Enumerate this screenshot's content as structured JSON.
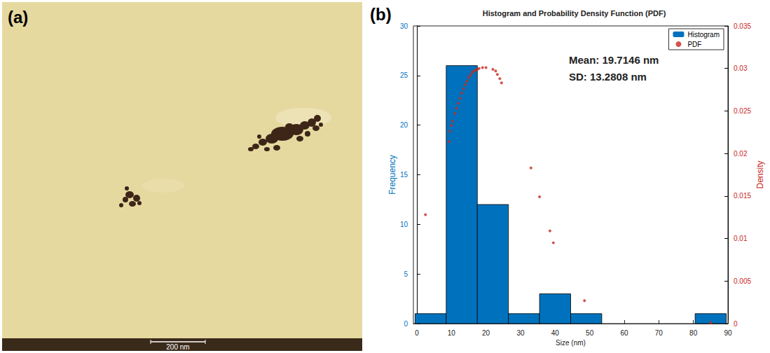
{
  "panel_a": {
    "label": "(a)",
    "scale_bar": "200 nm"
  },
  "chart_data": {
    "type": "histogram",
    "panel_label": "(b)",
    "title": "Histogram and Probability Density Function (PDF)",
    "xlabel": "Size (nm)",
    "ylabel": "Frequency",
    "y2label": "Density",
    "annotations": [
      "Mean: 19.7146 nm",
      "SD: 13.2808 nm"
    ],
    "bins": [
      -0.5,
      8.5,
      17.5,
      26.5,
      35.5,
      44.5,
      53.5,
      62.5,
      71.5,
      80.5,
      89.5
    ],
    "series": [
      {
        "name": "Histogram",
        "type": "bar",
        "color": "#0072bd",
        "values": [
          1,
          26,
          12,
          1,
          3,
          1,
          0,
          0,
          0,
          1
        ]
      },
      {
        "name": "PDF",
        "type": "scatter",
        "axis": "y2",
        "color": "#c8281e",
        "marker": "circle",
        "x": [
          2.5,
          9.3,
          9.6,
          10.0,
          10.3,
          11.0,
          11.5,
          12.0,
          12.5,
          13.0,
          13.5,
          14.0,
          14.5,
          15.0,
          15.5,
          16.0,
          16.5,
          17.0,
          17.5,
          18.0,
          19.0,
          20.0,
          22.0,
          22.8,
          23.3,
          24.0,
          24.5,
          33.0,
          35.5,
          38.5,
          39.5,
          48.5,
          85.0
        ],
        "values": [
          0.0128,
          0.0214,
          0.0226,
          0.0233,
          0.0238,
          0.0247,
          0.0253,
          0.0259,
          0.0265,
          0.0271,
          0.0276,
          0.0281,
          0.0285,
          0.0289,
          0.0292,
          0.0295,
          0.0297,
          0.0298,
          0.0299,
          0.03,
          0.0301,
          0.0301,
          0.0299,
          0.0297,
          0.0293,
          0.0288,
          0.0283,
          0.0183,
          0.0149,
          0.0109,
          0.0095,
          0.0027,
          0.0001
        ]
      }
    ],
    "xlim": [
      -1,
      90
    ],
    "xticks": [
      0,
      10,
      20,
      30,
      40,
      50,
      60,
      70,
      80,
      90
    ],
    "ylim": [
      0,
      30
    ],
    "yticks": [
      0,
      5,
      10,
      15,
      20,
      25,
      30
    ],
    "y2lim": [
      0,
      0.035
    ],
    "y2ticks": [
      0,
      0.005,
      0.01,
      0.015,
      0.02,
      0.025,
      0.03,
      0.035
    ],
    "legend": "upper right",
    "grid": false
  }
}
